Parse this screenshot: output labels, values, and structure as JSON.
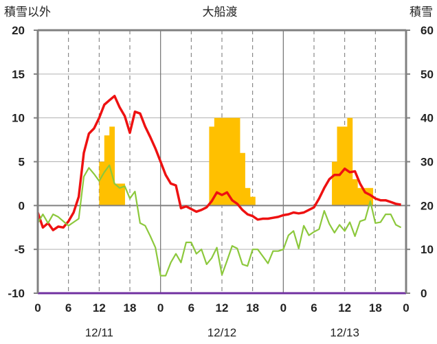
{
  "chart_data": {
    "type": "bar+line",
    "title": "大船渡",
    "ylabel_left": "積雪以外",
    "ylabel_right": "積雪",
    "left_axis": {
      "ylim": [
        -10,
        20
      ],
      "ticks": [
        "20",
        "15",
        "10",
        "5",
        "0",
        "-5",
        "-10"
      ],
      "tick_values": [
        20,
        15,
        10,
        5,
        0,
        -5,
        -10
      ]
    },
    "right_axis": {
      "ylim": [
        0,
        60
      ],
      "ticks": [
        "60",
        "50",
        "40",
        "30",
        "20",
        "10",
        "0"
      ],
      "tick_values": [
        60,
        50,
        40,
        30,
        20,
        10,
        0
      ]
    },
    "x_hours": {
      "range": [
        0,
        72
      ],
      "ticks": [
        "0",
        "6",
        "12",
        "18",
        "0",
        "6",
        "12",
        "18",
        "0",
        "6",
        "12",
        "18",
        "0"
      ],
      "tick_values": [
        0,
        6,
        12,
        18,
        24,
        30,
        36,
        42,
        48,
        54,
        60,
        66,
        72
      ]
    },
    "dates": [
      {
        "label": "12/11",
        "center_hour": 12
      },
      {
        "label": "12/12",
        "center_hour": 36
      },
      {
        "label": "12/13",
        "center_hour": 60
      }
    ],
    "colors": {
      "red_line": "#ee1111",
      "green_line": "#8cc83c",
      "bars": "#ffc000",
      "baseline": "#7030a0",
      "axes": "#808080"
    },
    "bars": {
      "axis": "left",
      "baseline": 0,
      "data": [
        {
          "x": 12.5,
          "y": 5
        },
        {
          "x": 13.5,
          "y": 8
        },
        {
          "x": 14.5,
          "y": 9
        },
        {
          "x": 15.5,
          "y": 2.5
        },
        {
          "x": 16.5,
          "y": 2.5
        },
        {
          "x": 34,
          "y": 9
        },
        {
          "x": 35,
          "y": 10
        },
        {
          "x": 36,
          "y": 10
        },
        {
          "x": 37,
          "y": 10
        },
        {
          "x": 38,
          "y": 10
        },
        {
          "x": 39,
          "y": 10
        },
        {
          "x": 40,
          "y": 6
        },
        {
          "x": 41,
          "y": 2
        },
        {
          "x": 42,
          "y": 1
        },
        {
          "x": 58,
          "y": 5
        },
        {
          "x": 59,
          "y": 9
        },
        {
          "x": 60,
          "y": 9
        },
        {
          "x": 61,
          "y": 10
        },
        {
          "x": 62,
          "y": 3
        },
        {
          "x": 63,
          "y": 2
        },
        {
          "x": 64,
          "y": 2
        },
        {
          "x": 65,
          "y": 2
        }
      ]
    },
    "series": [
      {
        "axis": "left",
        "color": "#ee1111",
        "points": [
          [
            0,
            -0.8
          ],
          [
            1,
            -2.5
          ],
          [
            2,
            -2
          ],
          [
            3,
            -2.8
          ],
          [
            4,
            -2.4
          ],
          [
            5,
            -2.5
          ],
          [
            6,
            -1.8
          ],
          [
            7,
            -0.8
          ],
          [
            8,
            1
          ],
          [
            9,
            6
          ],
          [
            10,
            8.2
          ],
          [
            11,
            8.8
          ],
          [
            12,
            10
          ],
          [
            13,
            11.5
          ],
          [
            14,
            12
          ],
          [
            15,
            12.5
          ],
          [
            16,
            11.2
          ],
          [
            17,
            10.2
          ],
          [
            18,
            8.3
          ],
          [
            19,
            10.7
          ],
          [
            20,
            10.5
          ],
          [
            21,
            9
          ],
          [
            22,
            7.8
          ],
          [
            23,
            6.5
          ],
          [
            24,
            5
          ],
          [
            25,
            3.5
          ],
          [
            26,
            2.5
          ],
          [
            27,
            2.3
          ],
          [
            28,
            -0.3
          ],
          [
            29,
            -0.1
          ],
          [
            30,
            -0.4
          ],
          [
            31,
            -0.7
          ],
          [
            32,
            -0.5
          ],
          [
            33,
            -0.2
          ],
          [
            34,
            0.5
          ],
          [
            35,
            1.5
          ],
          [
            36,
            1.2
          ],
          [
            37,
            1.5
          ],
          [
            38,
            0.6
          ],
          [
            39,
            0.2
          ],
          [
            40,
            -0.5
          ],
          [
            41,
            -1
          ],
          [
            42,
            -1.2
          ],
          [
            43,
            -1.6
          ],
          [
            44,
            -1.5
          ],
          [
            45,
            -1.5
          ],
          [
            46,
            -1.4
          ],
          [
            47,
            -1.3
          ],
          [
            48,
            -1.1
          ],
          [
            49,
            -1
          ],
          [
            50,
            -0.8
          ],
          [
            51,
            -0.9
          ],
          [
            52,
            -0.8
          ],
          [
            53,
            -0.5
          ],
          [
            54,
            -0.2
          ],
          [
            55,
            0.8
          ],
          [
            56,
            2
          ],
          [
            57,
            3
          ],
          [
            58,
            3.5
          ],
          [
            59,
            3.5
          ],
          [
            60,
            4.2
          ],
          [
            61,
            3.8
          ],
          [
            62,
            3.9
          ],
          [
            63,
            2.5
          ],
          [
            64,
            1.5
          ],
          [
            65,
            1.2
          ],
          [
            66,
            0.8
          ],
          [
            67,
            0.6
          ],
          [
            68,
            0.6
          ],
          [
            69,
            0.4
          ],
          [
            70,
            0.2
          ],
          [
            71,
            0.1
          ]
        ]
      },
      {
        "axis": "left",
        "color": "#8cc83c",
        "points": [
          [
            0,
            -2
          ],
          [
            1,
            -1
          ],
          [
            2,
            -2
          ],
          [
            3,
            -1
          ],
          [
            4,
            -1.3
          ],
          [
            5,
            -1.8
          ],
          [
            6,
            -2.3
          ],
          [
            7,
            -1.9
          ],
          [
            8,
            -1.5
          ],
          [
            9,
            3.3
          ],
          [
            10,
            4.3
          ],
          [
            11,
            3.6
          ],
          [
            12,
            2.8
          ],
          [
            13,
            3.8
          ],
          [
            14,
            4.6
          ],
          [
            15,
            2.5
          ],
          [
            16,
            2
          ],
          [
            17,
            2.2
          ],
          [
            18,
            0.8
          ],
          [
            19,
            1.6
          ],
          [
            20,
            -2
          ],
          [
            21,
            -2.3
          ],
          [
            22,
            -3.5
          ],
          [
            23,
            -4.8
          ],
          [
            24,
            -8
          ],
          [
            25,
            -8
          ],
          [
            26,
            -6.5
          ],
          [
            27,
            -5.5
          ],
          [
            28,
            -6.5
          ],
          [
            29,
            -4.2
          ],
          [
            30,
            -4.2
          ],
          [
            31,
            -5.5
          ],
          [
            32,
            -5
          ],
          [
            33,
            -6.7
          ],
          [
            34,
            -6
          ],
          [
            35,
            -4.8
          ],
          [
            36,
            -7.9
          ],
          [
            37,
            -6.3
          ],
          [
            38,
            -4.6
          ],
          [
            39,
            -4.9
          ],
          [
            40,
            -6.7
          ],
          [
            41,
            -6.9
          ],
          [
            42,
            -5
          ],
          [
            43,
            -5
          ],
          [
            44,
            -5.8
          ],
          [
            45,
            -6.6
          ],
          [
            46,
            -5.2
          ],
          [
            47,
            -5.2
          ],
          [
            48,
            -5
          ],
          [
            49,
            -3.4
          ],
          [
            50,
            -2.9
          ],
          [
            51,
            -4.9
          ],
          [
            52,
            -2.3
          ],
          [
            53,
            -3.4
          ],
          [
            54,
            -3
          ],
          [
            55,
            -2.7
          ],
          [
            56,
            -0.6
          ],
          [
            57,
            -2.1
          ],
          [
            58,
            -3.1
          ],
          [
            59,
            -2.2
          ],
          [
            60,
            -2.9
          ],
          [
            61,
            -1.9
          ],
          [
            62,
            -3.5
          ],
          [
            63,
            -1.8
          ],
          [
            64,
            -1.6
          ],
          [
            65,
            0.5
          ],
          [
            66,
            -2
          ],
          [
            67,
            -1.9
          ],
          [
            68,
            -1
          ],
          [
            69,
            -1
          ],
          [
            70,
            -2.2
          ],
          [
            71,
            -2.5
          ]
        ]
      }
    ]
  }
}
